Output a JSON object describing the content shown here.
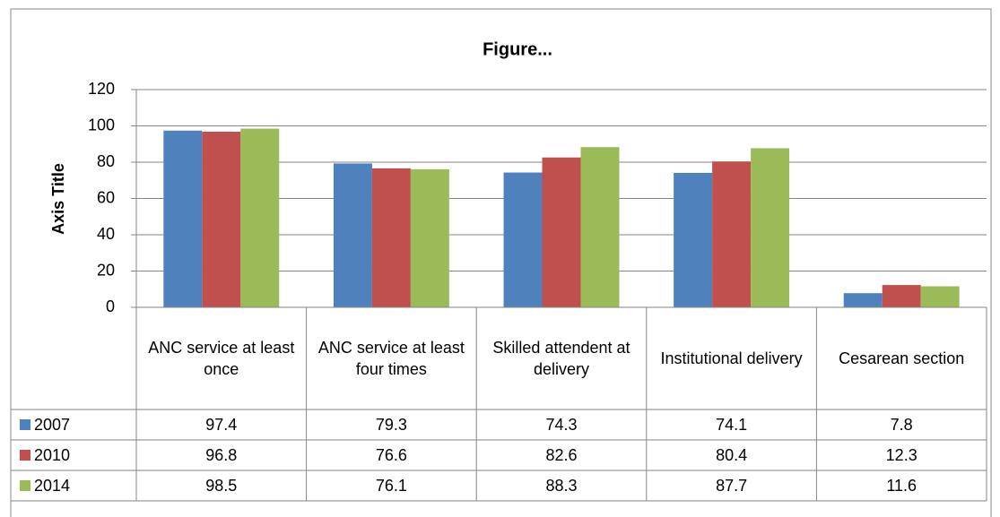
{
  "chart_data": {
    "type": "bar",
    "title": "Figure...",
    "y_axis_title": "Axis Title",
    "categories": [
      "ANC service at least once",
      "ANC service at least four times",
      "Skilled attendent at delivery",
      "Institutional delivery",
      "Cesarean section"
    ],
    "series": [
      {
        "name": "2007",
        "color": "#4f81bd",
        "values": [
          97.4,
          79.3,
          74.3,
          74.1,
          7.8
        ]
      },
      {
        "name": "2010",
        "color": "#c0504d",
        "values": [
          96.8,
          76.6,
          82.6,
          80.4,
          12.3
        ]
      },
      {
        "name": "2014",
        "color": "#9bbb59",
        "values": [
          98.5,
          76.1,
          88.3,
          87.7,
          11.6
        ]
      }
    ],
    "ylim": [
      0,
      120
    ],
    "yticks": [
      0,
      20,
      40,
      60,
      80,
      100,
      120
    ],
    "grid": true,
    "data_table": true
  }
}
